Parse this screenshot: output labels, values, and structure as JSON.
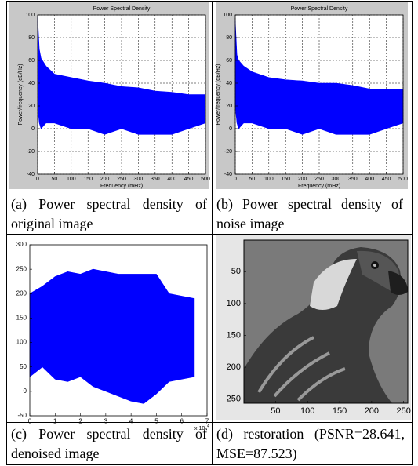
{
  "table": {
    "captions": [
      "(a) Power spectral density of original image",
      "(b) Power  spectral density of noise image",
      "(c) Power spectral density of denoised image",
      "(d) restoration (PSNR=28.641, MSE=87.523)"
    ]
  },
  "chart_data": [
    {
      "type": "area",
      "title": "Power Spectral Density",
      "x_label": "Frequency (mHz)",
      "y_label": "Power/frequency (dB/Hz)",
      "x": [
        0,
        5,
        10,
        25,
        50,
        100,
        150,
        200,
        250,
        300,
        350,
        400,
        450,
        500
      ],
      "ymax": [
        98,
        70,
        62,
        55,
        48,
        45,
        42,
        40,
        37,
        36,
        33,
        32,
        30,
        30
      ],
      "ymin": [
        20,
        5,
        0,
        5,
        5,
        0,
        0,
        -5,
        0,
        -5,
        -5,
        -5,
        0,
        5
      ],
      "color": "#0000ff",
      "xlim": [
        0,
        500
      ],
      "ylim": [
        -40,
        100
      ],
      "xticks": [
        0,
        50,
        100,
        150,
        200,
        250,
        300,
        350,
        400,
        450,
        500
      ],
      "yticks": [
        -40,
        -20,
        0,
        20,
        40,
        60,
        80,
        100
      ],
      "grid": true
    },
    {
      "type": "area",
      "title": "Power Spectral Density",
      "x_label": "Frequency (mHz)",
      "y_label": "Power/frequency (dB/Hz)",
      "x": [
        0,
        5,
        10,
        25,
        50,
        100,
        150,
        200,
        250,
        300,
        350,
        400,
        450,
        500
      ],
      "ymax": [
        95,
        65,
        60,
        55,
        50,
        45,
        43,
        42,
        40,
        40,
        38,
        35,
        35,
        35
      ],
      "ymin": [
        20,
        5,
        0,
        5,
        5,
        0,
        0,
        -5,
        0,
        -5,
        -5,
        -5,
        0,
        5
      ],
      "color": "#0000ff",
      "xlim": [
        0,
        500
      ],
      "ylim": [
        -40,
        100
      ],
      "xticks": [
        0,
        50,
        100,
        150,
        200,
        250,
        300,
        350,
        400,
        450,
        500
      ],
      "yticks": [
        -40,
        -20,
        0,
        20,
        40,
        60,
        80,
        100
      ],
      "grid": true
    },
    {
      "type": "area",
      "x": [
        0,
        0.5,
        1,
        1.5,
        2,
        2.5,
        3,
        3.5,
        4,
        4.5,
        5,
        5.5,
        6,
        6.5
      ],
      "ymax": [
        200,
        215,
        235,
        245,
        240,
        250,
        245,
        240,
        240,
        240,
        240,
        200,
        195,
        190
      ],
      "ymin": [
        30,
        50,
        25,
        20,
        30,
        10,
        0,
        -10,
        -20,
        -25,
        -5,
        20,
        25,
        30
      ],
      "color": "#0000ff",
      "xlim": [
        0,
        7
      ],
      "ylim": [
        -50,
        300
      ],
      "xticks": [
        0,
        1,
        2,
        3,
        4,
        5,
        6,
        7
      ],
      "yticks": [
        -50,
        0,
        50,
        100,
        150,
        200,
        250,
        300
      ],
      "grid": false,
      "x_scale_label": "x 10",
      "x_scale_exponent": "4"
    },
    {
      "type": "image",
      "xlim": [
        0.5,
        256.5
      ],
      "ylim": [
        0.5,
        256.5
      ],
      "xticks": [
        50,
        100,
        150,
        200,
        250
      ],
      "yticks": [
        50,
        100,
        150,
        200,
        250
      ]
    }
  ]
}
